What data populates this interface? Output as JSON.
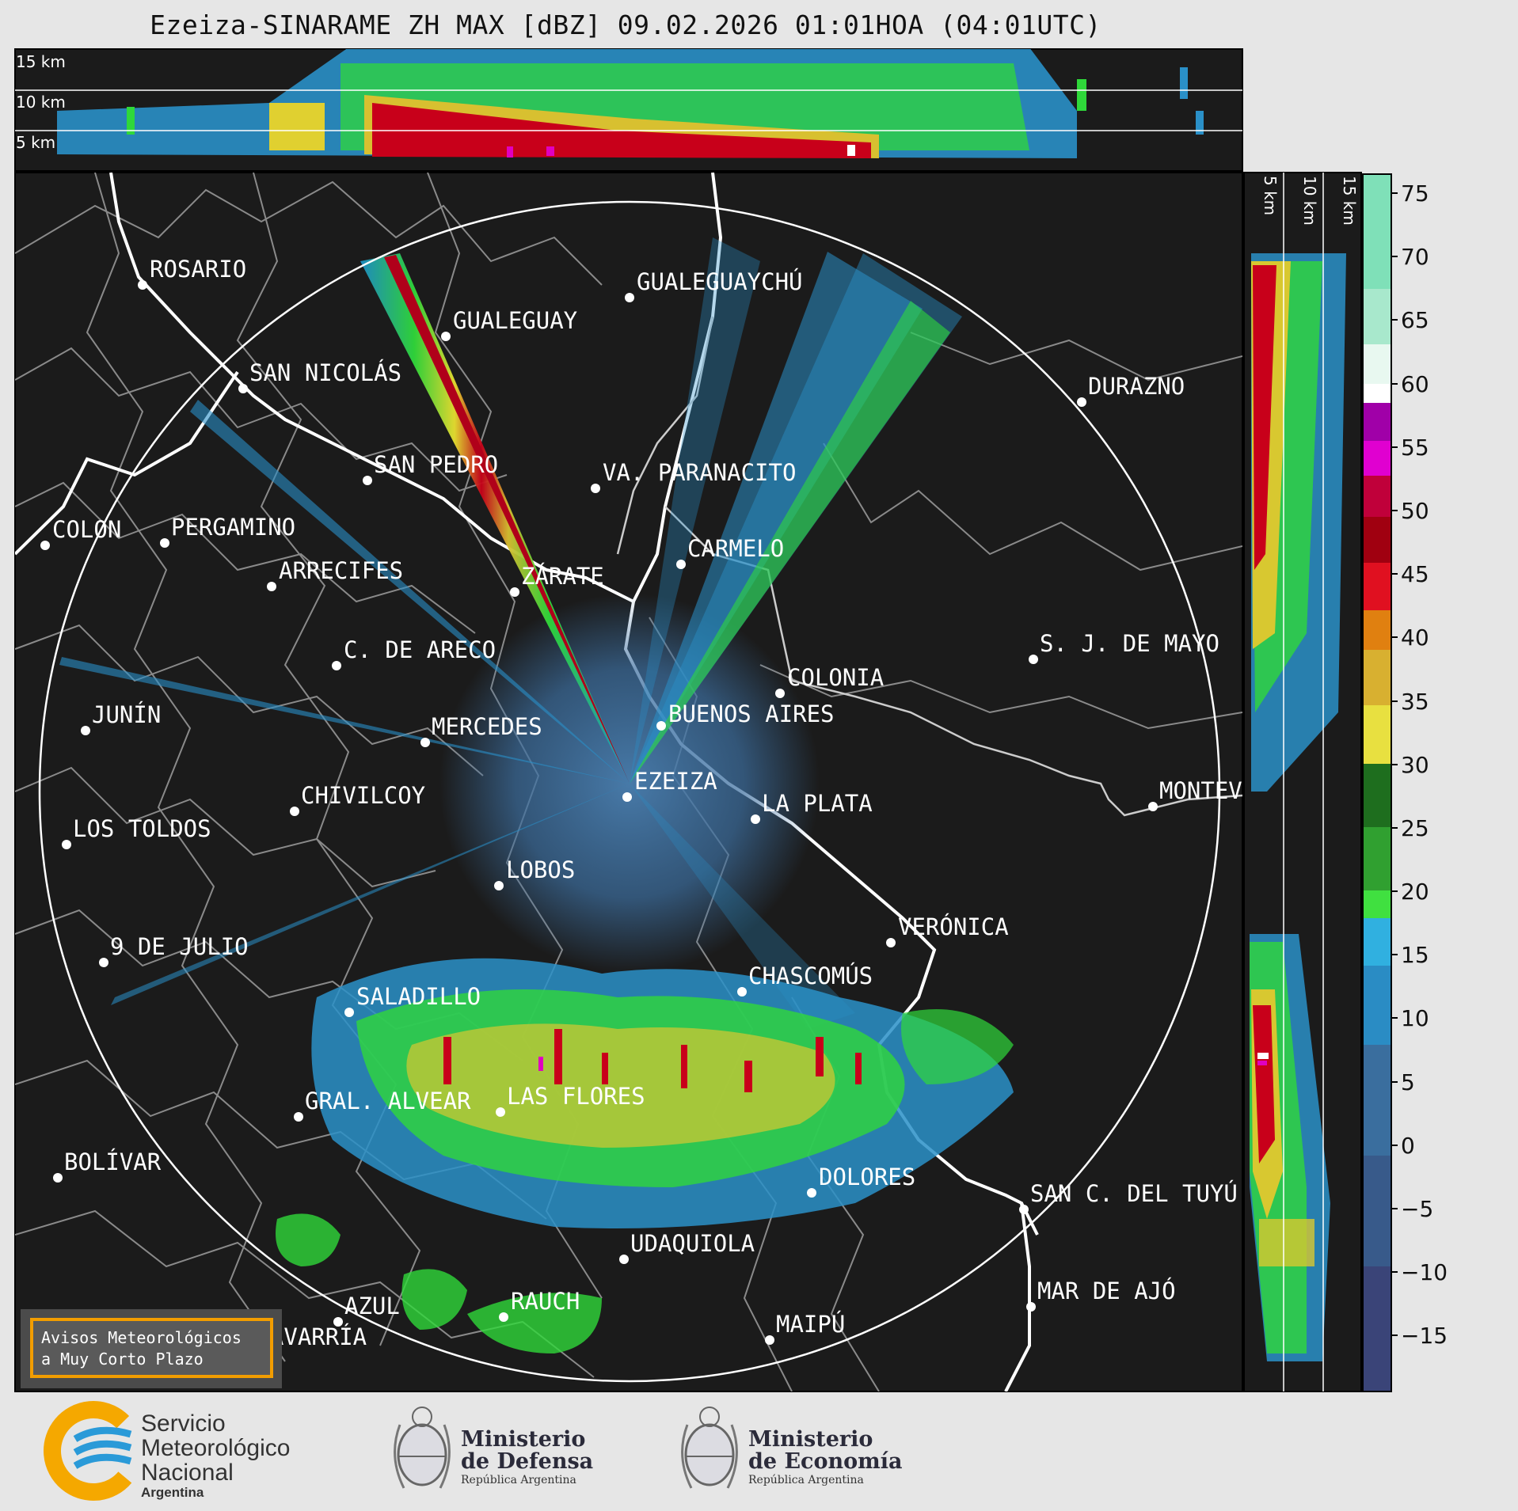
{
  "header": {
    "title": "Ezeiza-SINARAME ZH MAX [dBZ] 09.02.2026 01:01HOA (04:01UTC)"
  },
  "top_panel": {
    "height_labels": [
      "15 km",
      "10 km",
      "5 km"
    ]
  },
  "side_panel": {
    "height_labels": [
      "5 km",
      "10 km",
      "15 km"
    ]
  },
  "colorbar": {
    "ticks": [
      "75",
      "70",
      "65",
      "60",
      "55",
      "50",
      "45",
      "40",
      "35",
      "30",
      "25",
      "20",
      "15",
      "10",
      "5",
      "0",
      "−5",
      "−10",
      "−15"
    ]
  },
  "cities": [
    {
      "name": "ROSARIO"
    },
    {
      "name": "GUALEGUAYCHÚ"
    },
    {
      "name": "GUALEGUAY"
    },
    {
      "name": "SAN NICOLÁS"
    },
    {
      "name": "DURAZNO"
    },
    {
      "name": "SAN PEDRO"
    },
    {
      "name": "VA. PARANACITO"
    },
    {
      "name": "COLON"
    },
    {
      "name": "PERGAMINO"
    },
    {
      "name": "CARMELO"
    },
    {
      "name": "ARRECIFES"
    },
    {
      "name": "ZÁRATE"
    },
    {
      "name": "S. J. DE MAYO"
    },
    {
      "name": "C. DE ARECO"
    },
    {
      "name": "COLONIA"
    },
    {
      "name": "JUNÍN"
    },
    {
      "name": "BUENOS AIRES"
    },
    {
      "name": "MERCEDES"
    },
    {
      "name": "EZEIZA"
    },
    {
      "name": "MONTEVIDEO"
    },
    {
      "name": "CHIVILCOY"
    },
    {
      "name": "LA PLATA"
    },
    {
      "name": "LOS TOLDOS"
    },
    {
      "name": "LOBOS"
    },
    {
      "name": "VERÓNICA"
    },
    {
      "name": "9 DE JULIO"
    },
    {
      "name": "CHASCOMÚS"
    },
    {
      "name": "SALADILLO"
    },
    {
      "name": "GRAL. ALVEAR"
    },
    {
      "name": "LAS FLORES"
    },
    {
      "name": "BOLÍVAR"
    },
    {
      "name": "DOLORES"
    },
    {
      "name": "SAN C. DEL TUYÚ"
    },
    {
      "name": "UDAQUIOLA"
    },
    {
      "name": "MAR DE AJÓ"
    },
    {
      "name": "AZUL"
    },
    {
      "name": "RAUCH"
    },
    {
      "name": "OLAVARRÍA"
    },
    {
      "name": "MAIPÚ"
    }
  ],
  "alert_box": {
    "line1": "Avisos Meteorológicos",
    "line2": "a Muy Corto Plazo"
  },
  "footer": {
    "smn": {
      "line1": "Servicio",
      "line2": "Meteorológico",
      "line3": "Nacional",
      "country": "Argentina"
    },
    "defensa": {
      "line1": "Ministerio",
      "line2": "de Defensa",
      "sub": "República Argentina"
    },
    "economia": {
      "line1": "Ministerio",
      "line2": "de Economía",
      "sub": "República Argentina"
    }
  },
  "colors": {
    "map_background": "#1b1b1b",
    "range_ring": "#ffffff",
    "river_coast": "#ffffff",
    "borders": "#8a8a8a",
    "alert_border": "#f29d00"
  }
}
